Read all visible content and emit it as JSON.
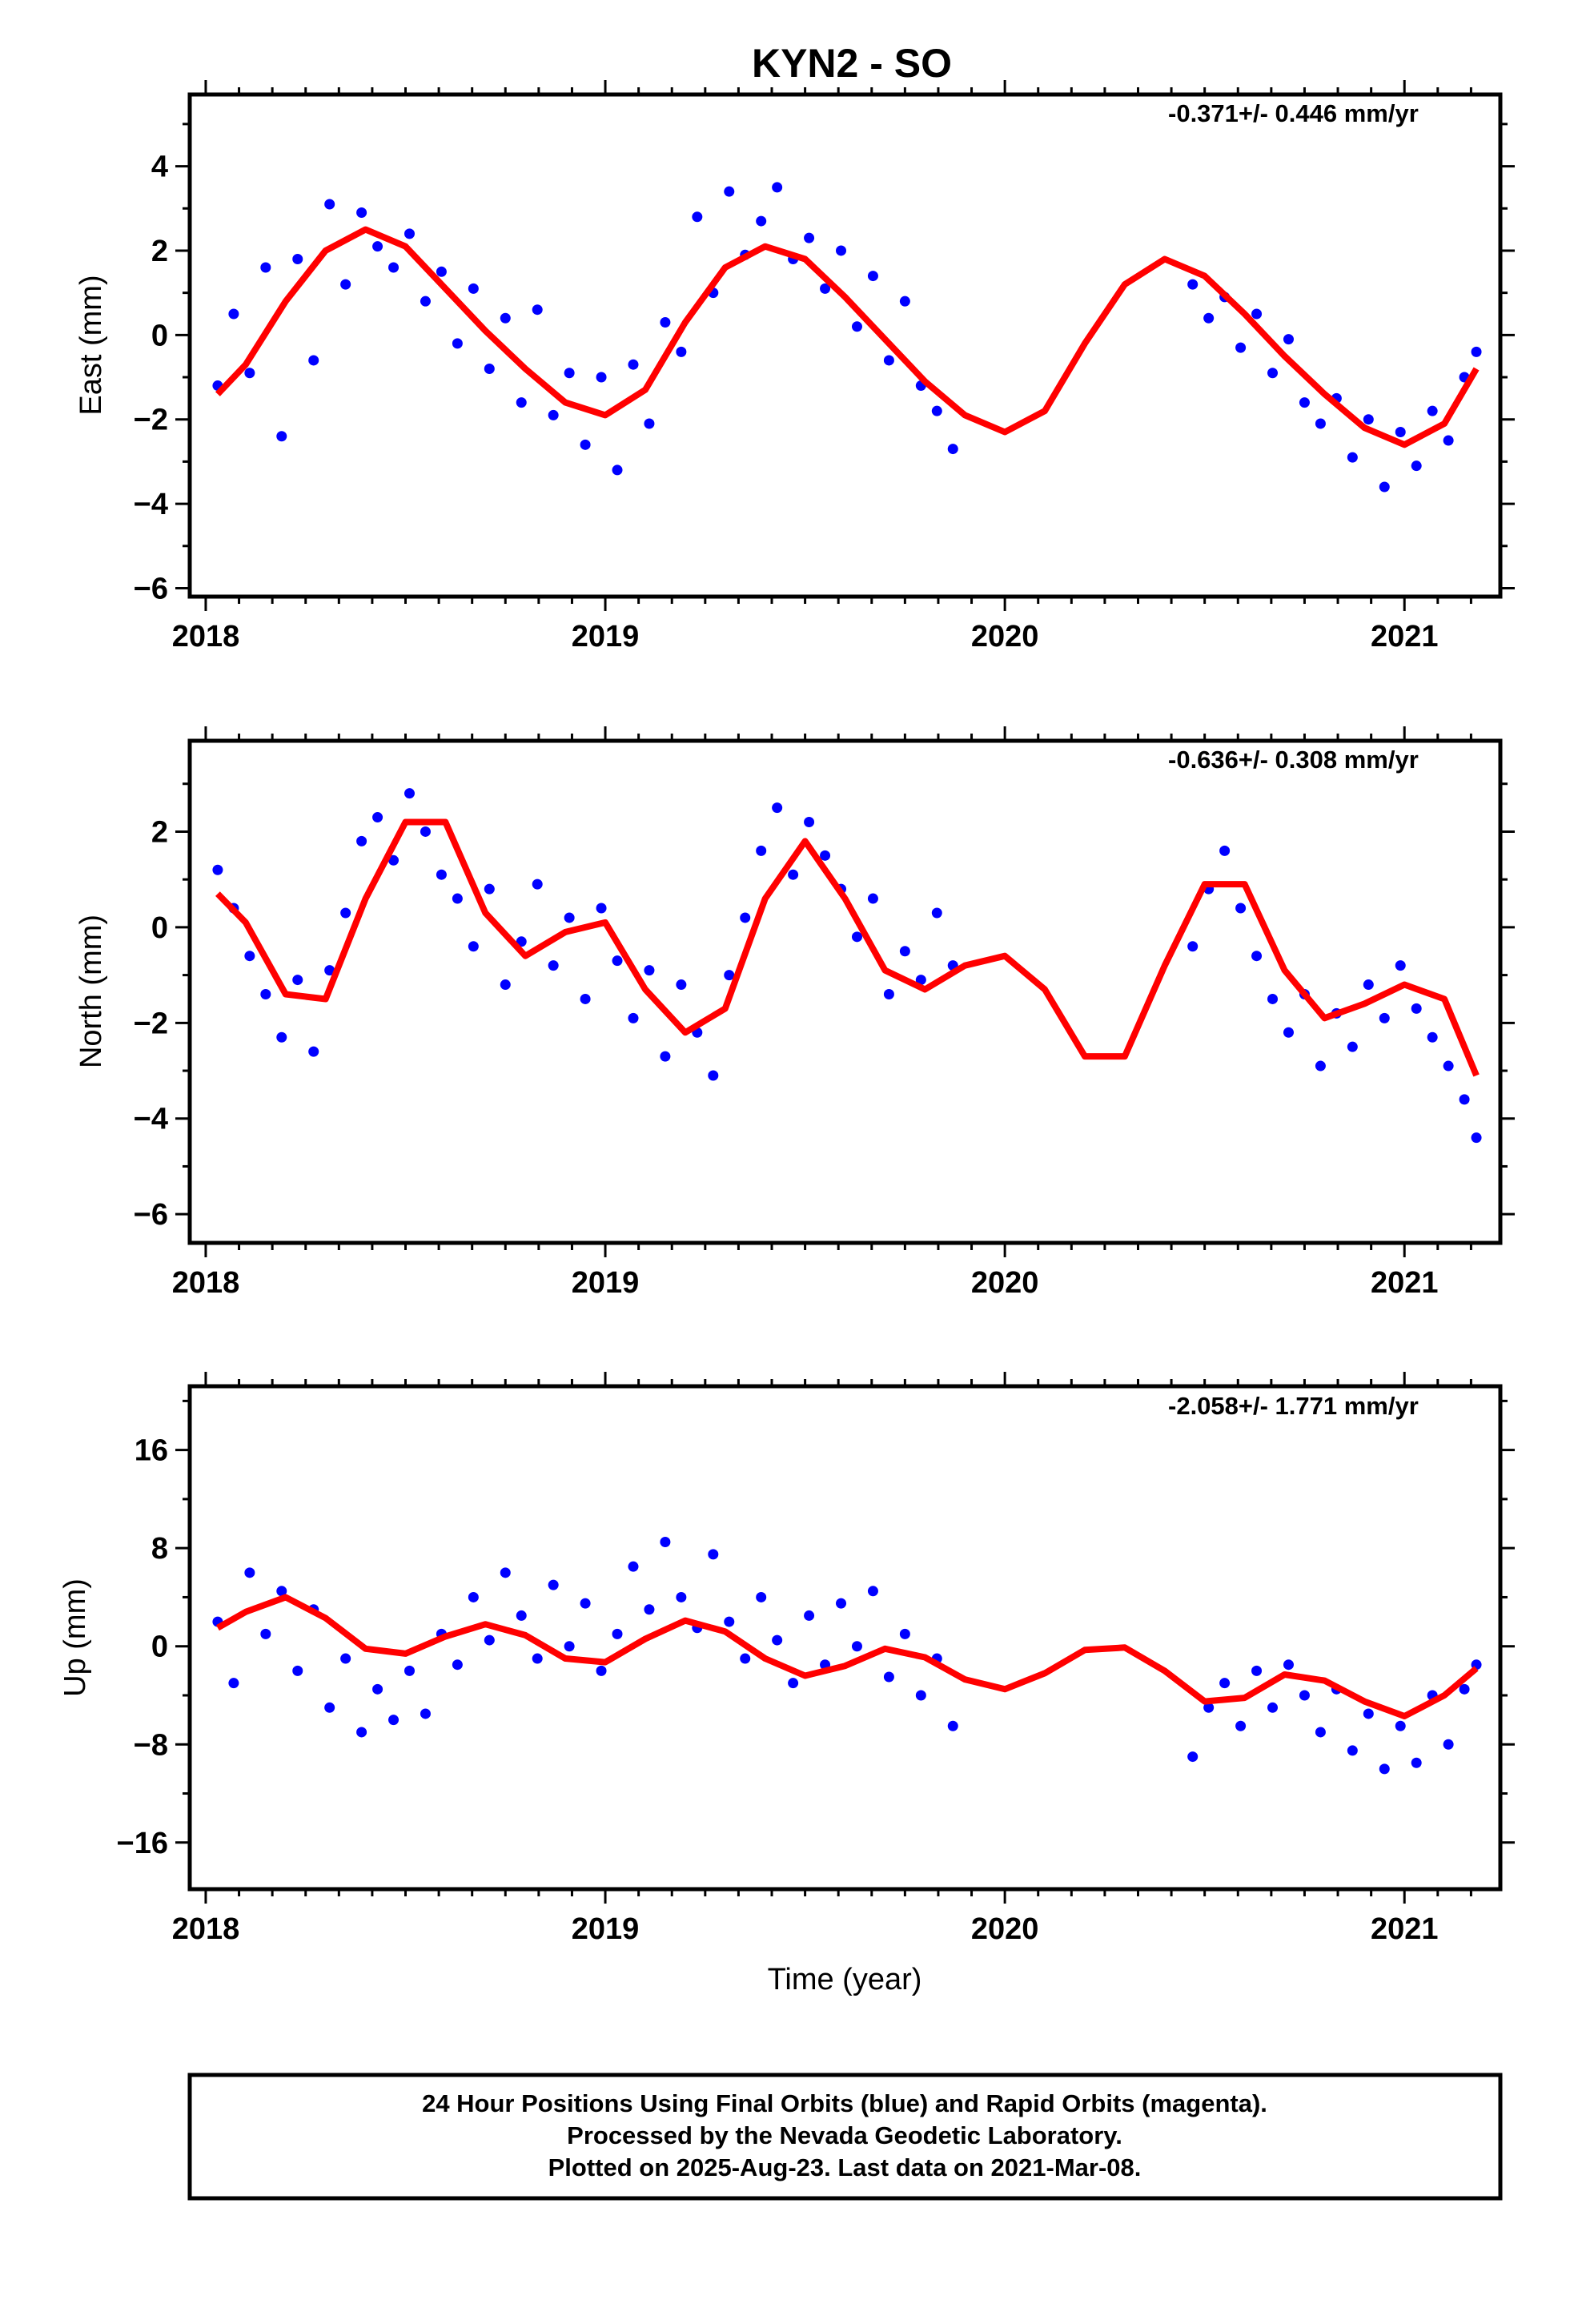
{
  "title": "KYN2 - SO",
  "xlabel": "Time (year)",
  "colors": {
    "points": "#0000ff",
    "fit": "#ff0000",
    "frame": "#000000"
  },
  "footer": [
    "24 Hour Positions Using Final Orbits (blue) and Rapid Orbits (magenta).",
    "Processed by the Nevada Geodetic Laboratory.",
    "Plotted on 2025-Aug-23. Last data on 2021-Mar-08."
  ],
  "chart_data": [
    {
      "type": "scatter",
      "name": "East",
      "ylabel": "East (mm)",
      "rate_label": "-0.371+/- 0.446 mm/yr",
      "xlim": [
        2017.96,
        2021.24
      ],
      "ylim": [
        -6.2,
        5.7
      ],
      "xticks": [
        "2018",
        "2019",
        "2020",
        "2021"
      ],
      "yticks": [
        -6,
        -4,
        -2,
        0,
        2,
        4
      ],
      "grid": false,
      "series": [
        {
          "kind": "points",
          "x": [
            2018.03,
            2018.07,
            2018.11,
            2018.15,
            2018.19,
            2018.23,
            2018.27,
            2018.31,
            2018.35,
            2018.39,
            2018.43,
            2018.47,
            2018.51,
            2018.55,
            2018.59,
            2018.63,
            2018.67,
            2018.71,
            2018.75,
            2018.79,
            2018.83,
            2018.87,
            2018.91,
            2018.95,
            2018.99,
            2019.03,
            2019.07,
            2019.11,
            2019.15,
            2019.19,
            2019.23,
            2019.27,
            2019.31,
            2019.35,
            2019.39,
            2019.43,
            2019.47,
            2019.51,
            2019.55,
            2019.59,
            2019.63,
            2019.67,
            2019.71,
            2019.75,
            2019.79,
            2019.83,
            2019.87,
            2020.47,
            2020.51,
            2020.55,
            2020.59,
            2020.63,
            2020.67,
            2020.71,
            2020.75,
            2020.79,
            2020.83,
            2020.87,
            2020.91,
            2020.95,
            2020.99,
            2021.03,
            2021.07,
            2021.11,
            2021.15,
            2021.18
          ],
          "y": [
            -1.2,
            0.5,
            -0.9,
            1.6,
            -2.4,
            1.8,
            -0.6,
            3.1,
            1.2,
            2.9,
            2.1,
            1.6,
            2.4,
            0.8,
            1.5,
            -0.2,
            1.1,
            -0.8,
            0.4,
            -1.6,
            0.6,
            -1.9,
            -0.9,
            -2.6,
            -1.0,
            -3.2,
            -0.7,
            -2.1,
            0.3,
            -0.4,
            2.8,
            1.0,
            3.4,
            1.9,
            2.7,
            3.5,
            1.8,
            2.3,
            1.1,
            2.0,
            0.2,
            1.4,
            -0.6,
            0.8,
            -1.2,
            -1.8,
            -2.7,
            1.2,
            0.4,
            0.9,
            -0.3,
            0.5,
            -0.9,
            -0.1,
            -1.6,
            -2.1,
            -1.5,
            -2.9,
            -2.0,
            -3.6,
            -2.3,
            -3.1,
            -1.8,
            -2.5,
            -1.0,
            -0.4
          ]
        },
        {
          "kind": "fit",
          "x": [
            2018.03,
            2018.1,
            2018.2,
            2018.3,
            2018.4,
            2018.5,
            2018.6,
            2018.7,
            2018.8,
            2018.9,
            2019.0,
            2019.1,
            2019.2,
            2019.3,
            2019.4,
            2019.5,
            2019.6,
            2019.7,
            2019.8,
            2019.9,
            2020.0,
            2020.1,
            2020.2,
            2020.3,
            2020.4,
            2020.5,
            2020.6,
            2020.7,
            2020.8,
            2020.9,
            2021.0,
            2021.1,
            2021.18
          ],
          "y": [
            -1.4,
            -0.7,
            0.8,
            2.0,
            2.5,
            2.1,
            1.1,
            0.1,
            -0.8,
            -1.6,
            -1.9,
            -1.3,
            0.3,
            1.6,
            2.1,
            1.8,
            0.9,
            -0.1,
            -1.1,
            -1.9,
            -2.3,
            -1.8,
            -0.2,
            1.2,
            1.8,
            1.4,
            0.5,
            -0.5,
            -1.4,
            -2.2,
            -2.6,
            -2.1,
            -0.8
          ]
        }
      ]
    },
    {
      "type": "scatter",
      "name": "North",
      "ylabel": "North (mm)",
      "rate_label": "-0.636+/- 0.308 mm/yr",
      "xlim": [
        2017.96,
        2021.24
      ],
      "ylim": [
        -6.6,
        3.9
      ],
      "xticks": [
        "2018",
        "2019",
        "2020",
        "2021"
      ],
      "yticks": [
        -6,
        -4,
        -2,
        0,
        2
      ],
      "grid": false,
      "series": [
        {
          "kind": "points",
          "x": [
            2018.03,
            2018.07,
            2018.11,
            2018.15,
            2018.19,
            2018.23,
            2018.27,
            2018.31,
            2018.35,
            2018.39,
            2018.43,
            2018.47,
            2018.51,
            2018.55,
            2018.59,
            2018.63,
            2018.67,
            2018.71,
            2018.75,
            2018.79,
            2018.83,
            2018.87,
            2018.91,
            2018.95,
            2018.99,
            2019.03,
            2019.07,
            2019.11,
            2019.15,
            2019.19,
            2019.23,
            2019.27,
            2019.31,
            2019.35,
            2019.39,
            2019.43,
            2019.47,
            2019.51,
            2019.55,
            2019.59,
            2019.63,
            2019.67,
            2019.71,
            2019.75,
            2019.79,
            2019.83,
            2019.87,
            2020.47,
            2020.51,
            2020.55,
            2020.59,
            2020.63,
            2020.67,
            2020.71,
            2020.75,
            2020.79,
            2020.83,
            2020.87,
            2020.91,
            2020.95,
            2020.99,
            2021.03,
            2021.07,
            2021.11,
            2021.15,
            2021.18
          ],
          "y": [
            1.2,
            0.4,
            -0.6,
            -1.4,
            -2.3,
            -1.1,
            -2.6,
            -0.9,
            0.3,
            1.8,
            2.3,
            1.4,
            2.8,
            2.0,
            1.1,
            0.6,
            -0.4,
            0.8,
            -1.2,
            -0.3,
            0.9,
            -0.8,
            0.2,
            -1.5,
            0.4,
            -0.7,
            -1.9,
            -0.9,
            -2.7,
            -1.2,
            -2.2,
            -3.1,
            -1.0,
            0.2,
            1.6,
            2.5,
            1.1,
            2.2,
            1.5,
            0.8,
            -0.2,
            0.6,
            -1.4,
            -0.5,
            -1.1,
            0.3,
            -0.8,
            -0.4,
            0.8,
            1.6,
            0.4,
            -0.6,
            -1.5,
            -2.2,
            -1.4,
            -2.9,
            -1.8,
            -2.5,
            -1.2,
            -1.9,
            -0.8,
            -1.7,
            -2.3,
            -2.9,
            -3.6,
            -4.4
          ]
        },
        {
          "kind": "fit",
          "x": [
            2018.03,
            2018.1,
            2018.2,
            2018.3,
            2018.4,
            2018.5,
            2018.6,
            2018.7,
            2018.8,
            2018.9,
            2019.0,
            2019.1,
            2019.2,
            2019.3,
            2019.4,
            2019.5,
            2019.6,
            2019.7,
            2019.8,
            2019.9,
            2020.0,
            2020.1,
            2020.2,
            2020.3,
            2020.4,
            2020.5,
            2020.6,
            2020.7,
            2020.8,
            2020.9,
            2021.0,
            2021.1,
            2021.18
          ],
          "y": [
            0.7,
            0.1,
            -1.4,
            -1.5,
            0.6,
            2.2,
            2.2,
            0.3,
            -0.6,
            -0.1,
            0.1,
            -1.3,
            -2.2,
            -1.7,
            0.6,
            1.8,
            0.6,
            -0.9,
            -1.3,
            -0.8,
            -0.6,
            -1.3,
            -2.7,
            -2.7,
            -0.8,
            0.9,
            0.9,
            -0.9,
            -1.9,
            -1.6,
            -1.2,
            -1.5,
            -3.1
          ]
        }
      ]
    },
    {
      "type": "scatter",
      "name": "Up",
      "ylabel": "Up (mm)",
      "rate_label": "-2.058+/- 1.771 mm/yr",
      "xlim": [
        2017.96,
        2021.24
      ],
      "ylim": [
        -19.8,
        21.2
      ],
      "xticks": [
        "2018",
        "2019",
        "2020",
        "2021"
      ],
      "yticks": [
        -16,
        -8,
        0,
        8,
        16
      ],
      "grid": false,
      "series": [
        {
          "kind": "points",
          "x": [
            2018.03,
            2018.07,
            2018.11,
            2018.15,
            2018.19,
            2018.23,
            2018.27,
            2018.31,
            2018.35,
            2018.39,
            2018.43,
            2018.47,
            2018.51,
            2018.55,
            2018.59,
            2018.63,
            2018.67,
            2018.71,
            2018.75,
            2018.79,
            2018.83,
            2018.87,
            2018.91,
            2018.95,
            2018.99,
            2019.03,
            2019.07,
            2019.11,
            2019.15,
            2019.19,
            2019.23,
            2019.27,
            2019.31,
            2019.35,
            2019.39,
            2019.43,
            2019.47,
            2019.51,
            2019.55,
            2019.59,
            2019.63,
            2019.67,
            2019.71,
            2019.75,
            2019.79,
            2019.83,
            2019.87,
            2020.47,
            2020.51,
            2020.55,
            2020.59,
            2020.63,
            2020.67,
            2020.71,
            2020.75,
            2020.79,
            2020.83,
            2020.87,
            2020.91,
            2020.95,
            2020.99,
            2021.03,
            2021.07,
            2021.11,
            2021.15,
            2021.18
          ],
          "y": [
            2.0,
            -3.0,
            6.0,
            1.0,
            4.5,
            -2.0,
            3.0,
            -5.0,
            -1.0,
            -7.0,
            -3.5,
            -6.0,
            -2.0,
            -5.5,
            1.0,
            -1.5,
            4.0,
            0.5,
            6.0,
            2.5,
            -1.0,
            5.0,
            0.0,
            3.5,
            -2.0,
            1.0,
            6.5,
            3.0,
            8.5,
            4.0,
            1.5,
            7.5,
            2.0,
            -1.0,
            4.0,
            0.5,
            -3.0,
            2.5,
            -1.5,
            3.5,
            0.0,
            4.5,
            -2.5,
            1.0,
            -4.0,
            -1.0,
            -6.5,
            -9.0,
            -5.0,
            -3.0,
            -6.5,
            -2.0,
            -5.0,
            -1.5,
            -4.0,
            -7.0,
            -3.5,
            -8.5,
            -5.5,
            -10.0,
            -6.5,
            -9.5,
            -4.0,
            -8.0,
            -3.5,
            -1.5
          ]
        },
        {
          "kind": "fit",
          "x": [
            2018.03,
            2018.1,
            2018.2,
            2018.3,
            2018.4,
            2018.5,
            2018.6,
            2018.7,
            2018.8,
            2018.9,
            2019.0,
            2019.1,
            2019.2,
            2019.3,
            2019.4,
            2019.5,
            2019.6,
            2019.7,
            2019.8,
            2019.9,
            2020.0,
            2020.1,
            2020.2,
            2020.3,
            2020.4,
            2020.5,
            2020.6,
            2020.7,
            2020.8,
            2020.9,
            2021.0,
            2021.1,
            2021.18
          ],
          "y": [
            1.5,
            2.8,
            4.0,
            2.3,
            -0.2,
            -0.6,
            0.8,
            1.8,
            0.9,
            -1.0,
            -1.3,
            0.6,
            2.1,
            1.2,
            -1.0,
            -2.4,
            -1.6,
            -0.2,
            -0.9,
            -2.7,
            -3.5,
            -2.2,
            -0.3,
            -0.1,
            -2.0,
            -4.5,
            -4.2,
            -2.3,
            -2.8,
            -4.5,
            -5.7,
            -4.0,
            -1.8
          ]
        }
      ]
    }
  ]
}
